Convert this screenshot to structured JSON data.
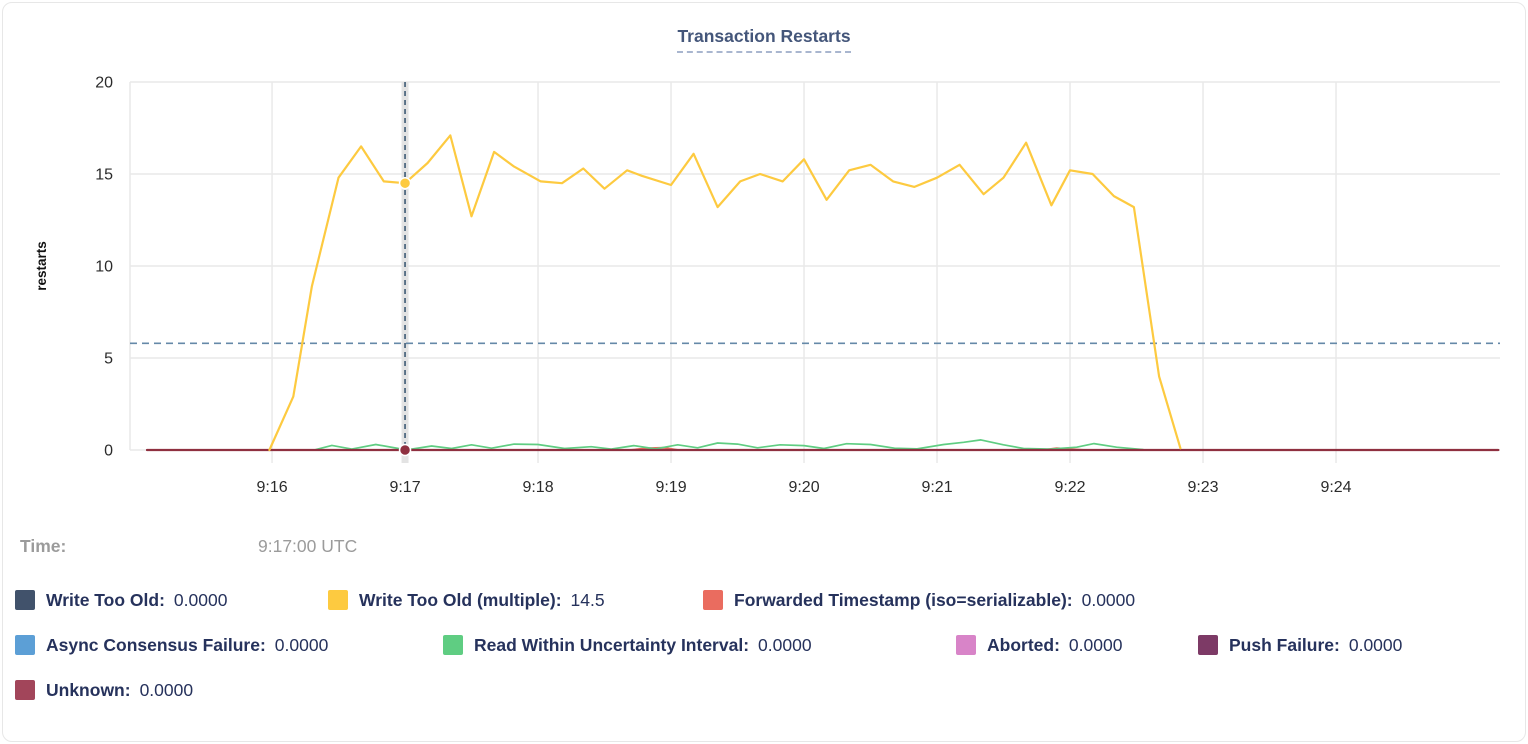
{
  "chart": {
    "title": "Transaction Restarts"
  },
  "tooltip": {
    "time_label": "Time:",
    "time_value": "9:17:00 UTC"
  },
  "legend": {
    "items": [
      {
        "label": "Write Too Old:",
        "value": "0.0000",
        "color": "#41526b"
      },
      {
        "label": "Write Too Old (multiple):",
        "value": "14.5",
        "color": "#fdca40"
      },
      {
        "label": "Forwarded Timestamp (iso=serializable):",
        "value": "0.0000",
        "color": "#ea6c5f"
      },
      {
        "label": "Async Consensus Failure:",
        "value": "0.0000",
        "color": "#5c9fd6"
      },
      {
        "label": "Read Within Uncertainty Interval:",
        "value": "0.0000",
        "color": "#5fcd82"
      },
      {
        "label": "Aborted:",
        "value": "0.0000",
        "color": "#d884c8"
      },
      {
        "label": "Push Failure:",
        "value": "0.0000",
        "color": "#7d3a66"
      },
      {
        "label": "Unknown:",
        "value": "0.0000",
        "color": "#a2455a"
      }
    ]
  },
  "chart_data": {
    "type": "line",
    "title": "Transaction Restarts",
    "xlabel": "",
    "ylabel": "restarts",
    "ylim": [
      0,
      20
    ],
    "y_ticks": [
      0,
      5,
      10,
      15,
      20
    ],
    "x_range": [
      14.932,
      25.233
    ],
    "x_ticks": [
      {
        "t": 16,
        "label": "9:16"
      },
      {
        "t": 17,
        "label": "9:17"
      },
      {
        "t": 18,
        "label": "9:18"
      },
      {
        "t": 19,
        "label": "9:19"
      },
      {
        "t": 20,
        "label": "9:20"
      },
      {
        "t": 21,
        "label": "9:21"
      },
      {
        "t": 22,
        "label": "9:22"
      },
      {
        "t": 23,
        "label": "9:23"
      },
      {
        "t": 24,
        "label": "9:24"
      }
    ],
    "grid": true,
    "legend_position": "bottom",
    "dashed_rule_y": 5.8,
    "crosshair": {
      "t": 17,
      "time": "9:17:00 UTC",
      "hovered_series": "Write Too Old (multiple)",
      "hovered_value": 14.5
    },
    "hover_dots": [
      {
        "t": 17,
        "v": 14.5,
        "color": "#fdca40"
      },
      {
        "t": 17,
        "v": 0,
        "color": "#8f3040"
      }
    ],
    "series": [
      {
        "name": "Forwarded Timestamp (iso=serializable)",
        "color": "#ea6c5f",
        "width": 2,
        "points": [
          [
            15.06,
            0
          ],
          [
            18.7,
            0
          ],
          [
            18.82,
            0.1
          ],
          [
            18.95,
            0.12
          ],
          [
            19.05,
            0
          ],
          [
            21.8,
            0
          ],
          [
            21.9,
            0.1
          ],
          [
            22.0,
            0.05
          ],
          [
            22.1,
            0
          ],
          [
            25.22,
            0
          ]
        ]
      },
      {
        "name": "Read Within Uncertainty Interval",
        "color": "#5fcd82",
        "width": 1.7,
        "points": [
          [
            16.33,
            0.02
          ],
          [
            16.45,
            0.25
          ],
          [
            16.6,
            0.05
          ],
          [
            16.78,
            0.3
          ],
          [
            16.95,
            0.08
          ],
          [
            17.05,
            0.05
          ],
          [
            17.2,
            0.22
          ],
          [
            17.35,
            0.08
          ],
          [
            17.5,
            0.28
          ],
          [
            17.65,
            0.1
          ],
          [
            17.82,
            0.32
          ],
          [
            18.0,
            0.3
          ],
          [
            18.2,
            0.08
          ],
          [
            18.4,
            0.18
          ],
          [
            18.55,
            0.05
          ],
          [
            18.72,
            0.24
          ],
          [
            18.88,
            0.06
          ],
          [
            19.05,
            0.28
          ],
          [
            19.2,
            0.12
          ],
          [
            19.35,
            0.38
          ],
          [
            19.5,
            0.32
          ],
          [
            19.65,
            0.12
          ],
          [
            19.82,
            0.28
          ],
          [
            20.0,
            0.24
          ],
          [
            20.15,
            0.08
          ],
          [
            20.32,
            0.34
          ],
          [
            20.5,
            0.3
          ],
          [
            20.68,
            0.1
          ],
          [
            20.85,
            0.06
          ],
          [
            21.05,
            0.3
          ],
          [
            21.2,
            0.42
          ],
          [
            21.33,
            0.55
          ],
          [
            21.5,
            0.28
          ],
          [
            21.65,
            0.08
          ],
          [
            21.85,
            0.05
          ],
          [
            22.05,
            0.15
          ],
          [
            22.18,
            0.35
          ],
          [
            22.35,
            0.15
          ],
          [
            22.55,
            0.02
          ],
          [
            22.62,
            0
          ]
        ]
      },
      {
        "name": "Unknown",
        "color": "#8f3040",
        "width": 2.2,
        "points": [
          [
            15.06,
            0
          ],
          [
            25.22,
            0
          ]
        ]
      },
      {
        "name": "Write Too Old (multiple)",
        "color": "#fdca40",
        "width": 2.2,
        "points": [
          [
            15.98,
            0
          ],
          [
            16.16,
            2.9
          ],
          [
            16.3,
            8.9
          ],
          [
            16.5,
            14.8
          ],
          [
            16.67,
            16.5
          ],
          [
            16.84,
            14.6
          ],
          [
            17.0,
            14.5
          ],
          [
            17.17,
            15.6
          ],
          [
            17.34,
            17.1
          ],
          [
            17.5,
            12.7
          ],
          [
            17.67,
            16.2
          ],
          [
            17.82,
            15.4
          ],
          [
            18.02,
            14.6
          ],
          [
            18.18,
            14.5
          ],
          [
            18.34,
            15.3
          ],
          [
            18.5,
            14.2
          ],
          [
            18.67,
            15.2
          ],
          [
            18.78,
            14.9
          ],
          [
            19.0,
            14.4
          ],
          [
            19.17,
            16.1
          ],
          [
            19.35,
            13.2
          ],
          [
            19.52,
            14.6
          ],
          [
            19.67,
            15.0
          ],
          [
            19.84,
            14.6
          ],
          [
            20.0,
            15.8
          ],
          [
            20.17,
            13.6
          ],
          [
            20.34,
            15.2
          ],
          [
            20.5,
            15.5
          ],
          [
            20.67,
            14.6
          ],
          [
            20.83,
            14.3
          ],
          [
            21.0,
            14.8
          ],
          [
            21.17,
            15.5
          ],
          [
            21.35,
            13.9
          ],
          [
            21.5,
            14.8
          ],
          [
            21.67,
            16.7
          ],
          [
            21.86,
            13.3
          ],
          [
            22.0,
            15.2
          ],
          [
            22.17,
            15.0
          ],
          [
            22.33,
            13.8
          ],
          [
            22.48,
            13.2
          ],
          [
            22.67,
            4.0
          ],
          [
            22.83,
            0.1
          ]
        ]
      }
    ],
    "colors": {
      "grid": "#e9e9e9",
      "crosshair_band": "#e3e3e3",
      "crosshair_line": "#3e5a74",
      "dashed_rule": "#6589a8"
    }
  }
}
